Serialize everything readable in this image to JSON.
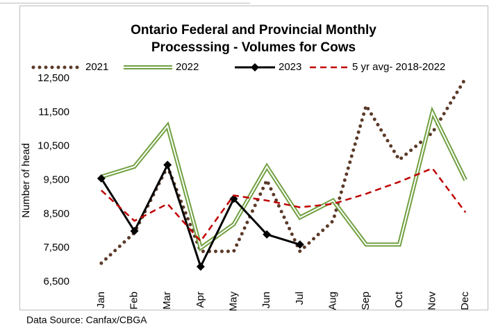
{
  "chart_data": {
    "type": "line",
    "title": [
      "Ontario Federal and Provincial Monthly",
      "Processsing - Volumes for Cows"
    ],
    "y_label": "Number of head",
    "source": "Data Source: Canfax/CBGA",
    "categories": [
      "Jan",
      "Feb",
      "Mar",
      "Apr",
      "May",
      "Jun",
      "Jul",
      "Aug",
      "Sep",
      "Oct",
      "Nov",
      "Dec"
    ],
    "series": [
      {
        "name": "2021",
        "color": "#5b3a29",
        "style": "dotted",
        "values": [
          7050,
          7950,
          9900,
          7400,
          7400,
          9500,
          7400,
          8300,
          11700,
          10100,
          10900,
          12500
        ]
      },
      {
        "name": "2022",
        "color": "#70a040",
        "style": "double",
        "values": [
          9600,
          9900,
          11100,
          7500,
          8200,
          9900,
          8400,
          8900,
          7600,
          7600,
          11500,
          9500
        ]
      },
      {
        "name": "2023",
        "color": "#000000",
        "style": "solid-diamond",
        "values": [
          9550,
          8000,
          9950,
          6950,
          8950,
          7900,
          7600,
          null,
          null,
          null,
          null,
          null
        ]
      },
      {
        "name": "5 yr avg- 2018-2022",
        "color": "#c00000",
        "style": "dashed",
        "values": [
          9200,
          8300,
          8800,
          7700,
          9050,
          8900,
          8700,
          8800,
          9100,
          9450,
          9850,
          8550
        ]
      }
    ],
    "ylim": [
      6500,
      12500
    ],
    "yticks": [
      {
        "value": 6500,
        "label": "6,500"
      },
      {
        "value": 7500,
        "label": "7,500"
      },
      {
        "value": 8500,
        "label": "8,500"
      },
      {
        "value": 9500,
        "label": "9,500"
      },
      {
        "value": 10500,
        "label": "10,500"
      },
      {
        "value": 11500,
        "label": "11,500"
      },
      {
        "value": 12500,
        "label": "12,500"
      }
    ],
    "legend": "top"
  }
}
